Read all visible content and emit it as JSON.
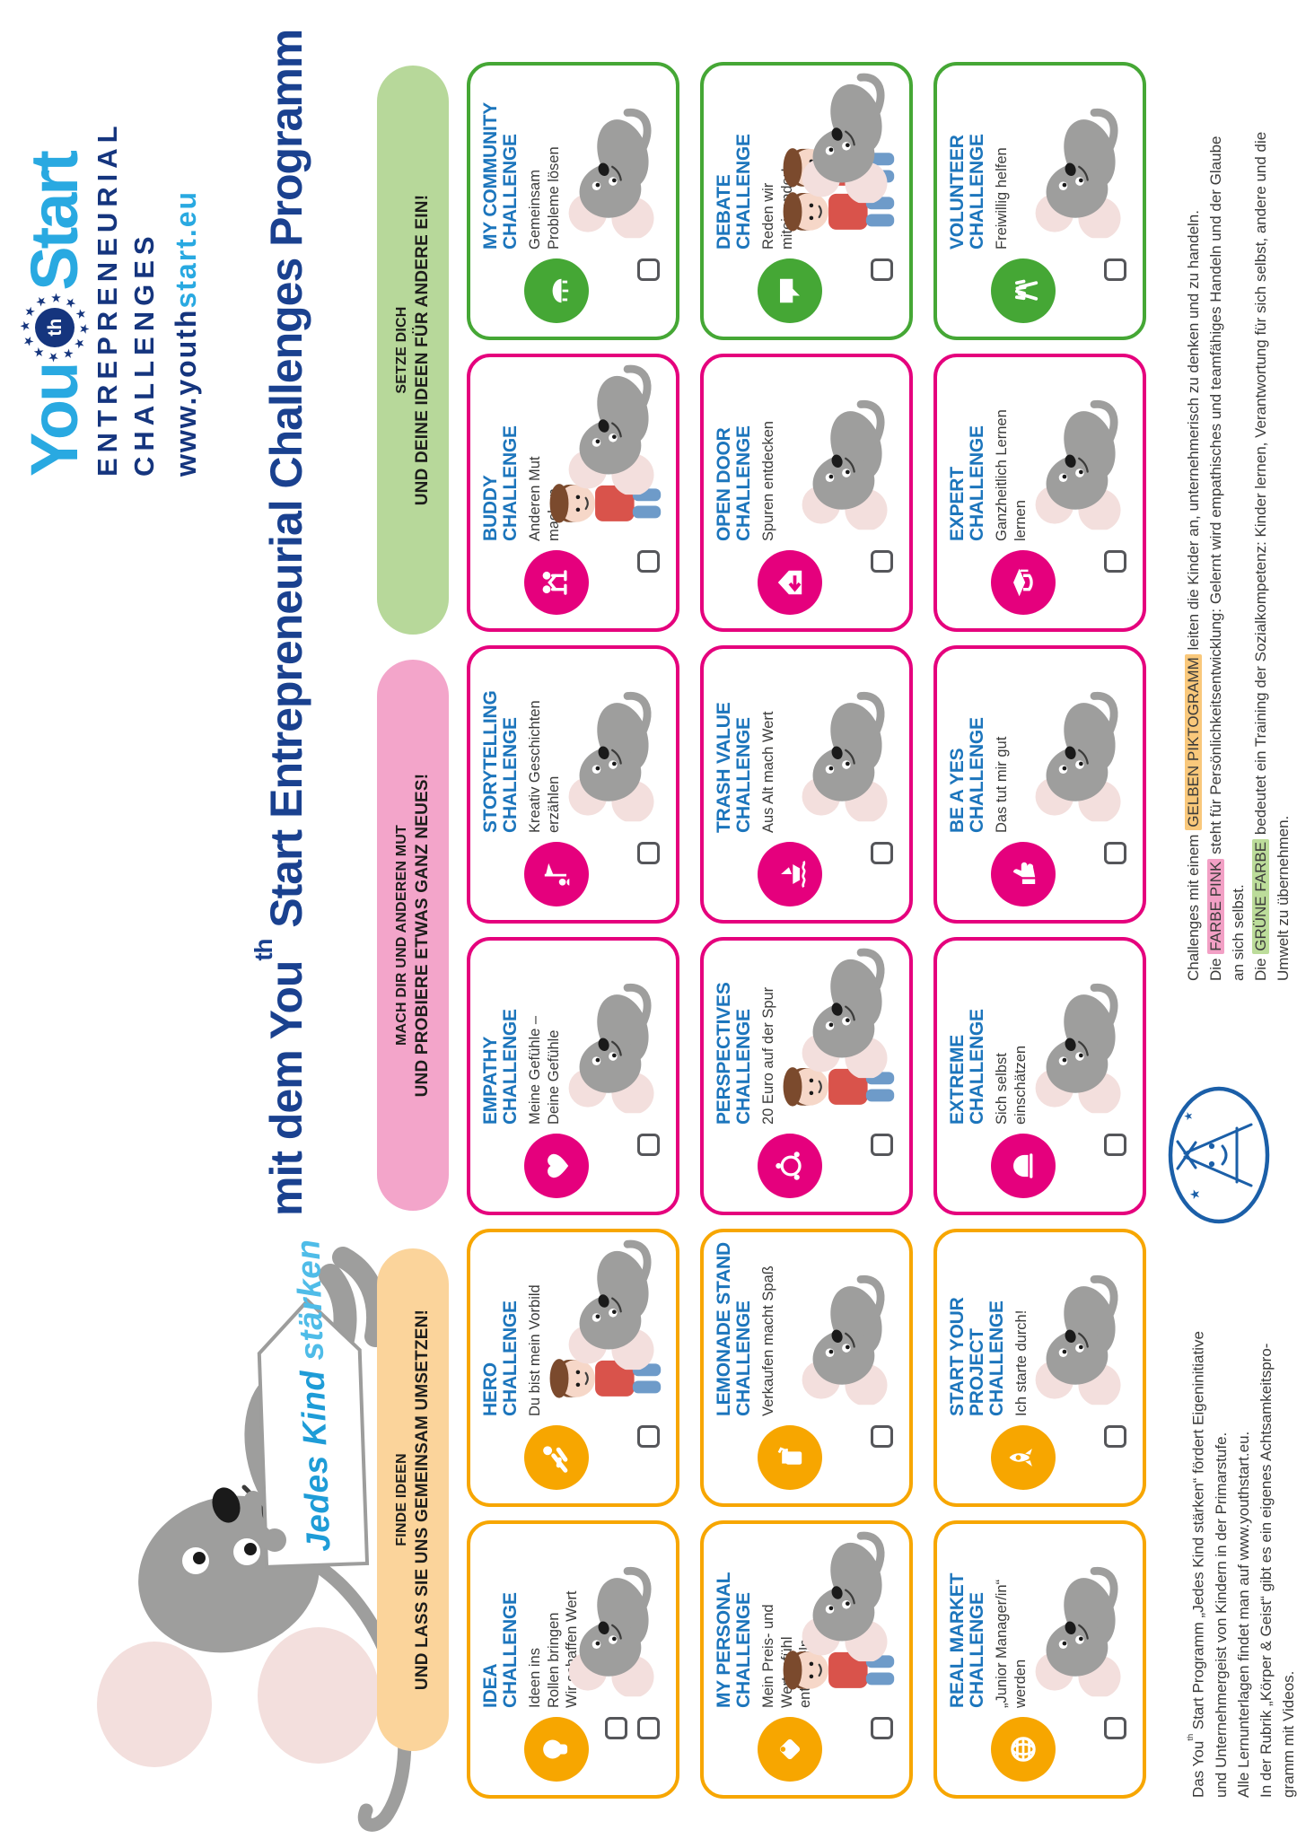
{
  "logo": {
    "you": "You",
    "th": "th",
    "start": "Start",
    "line2": "ENTREPRENEURIAL",
    "line3": "CHALLENGES",
    "url_dark": "www.youth",
    "url_light": "start.eu"
  },
  "sign": {
    "part1": "Jedes Kind ",
    "part2": "stärken"
  },
  "headline_rich": [
    {
      "t": "mit dem You"
    },
    {
      "t": "th",
      "sup": true
    },
    {
      "t": " Start Entrepreneurial Challenges Programm"
    }
  ],
  "sections": [
    {
      "id": "finde-ideen",
      "color": "amber",
      "line1": "FINDE IDEEN",
      "line2": "UND LASS SIE UNS GEMEINSAM UMSETZEN!"
    },
    {
      "id": "mach-mut",
      "color": "pink",
      "line1": "MACH DIR UND ANDEREN MUT",
      "line2": "UND PROBIERE ETWAS GANZ NEUES!"
    },
    {
      "id": "setze-dich",
      "color": "green",
      "line1": "SETZE DICH",
      "line2": "UND DEINE IDEEN FÜR ANDERE EIN!"
    }
  ],
  "cards": [
    {
      "name": "idea-challenge",
      "color": "amber",
      "icon": "lightbulb",
      "title": "IDEA\nCHALLENGE",
      "subtitle": "Ideen ins\nRollen bringen\nWir schaffen Wert",
      "checkboxes": 2,
      "scene": [
        "mouse"
      ]
    },
    {
      "name": "hero-challenge",
      "color": "amber",
      "icon": "superhero",
      "title": "HERO\nCHALLENGE",
      "subtitle": "Du bist mein Vorbild",
      "checkboxes": 1,
      "scene": [
        "kid",
        "mouse"
      ]
    },
    {
      "name": "empathy-challenge",
      "color": "pink",
      "icon": "heart",
      "title": "EMPATHY\nCHALLENGE",
      "subtitle": "Meine Gefühle –\nDeine Gefühle",
      "checkboxes": 1,
      "scene": [
        "mouse"
      ]
    },
    {
      "name": "storytelling-challenge",
      "color": "pink",
      "icon": "storyteller",
      "title": "STORYTELLING\nCHALLENGE",
      "subtitle": "Kreativ Geschichten\nerzählen",
      "checkboxes": 1,
      "scene": [
        "mouse"
      ]
    },
    {
      "name": "buddy-challenge",
      "color": "pink",
      "icon": "highfive",
      "title": "BUDDY\nCHALLENGE",
      "subtitle": "Anderen Mut\nmachen",
      "checkboxes": 1,
      "scene": [
        "kid",
        "mouse"
      ]
    },
    {
      "name": "my-community-challenge",
      "color": "green",
      "icon": "roundtable",
      "title": "MY COMMUNITY\nCHALLENGE",
      "subtitle": "Gemeinsam\nProbleme lösen",
      "checkboxes": 1,
      "scene": [
        "mouse"
      ]
    },
    {
      "name": "my-personal-challenge",
      "color": "amber",
      "icon": "price-tag",
      "title": "MY PERSONAL\nCHALLENGE",
      "subtitle": "Mein Preis- und\nWertgefühl\nentwickeln",
      "checkboxes": 1,
      "scene": [
        "kid",
        "mouse"
      ]
    },
    {
      "name": "lemonade-stand-challenge",
      "color": "amber",
      "icon": "juice-box",
      "title": "LEMONADE STAND\nCHALLENGE",
      "subtitle": "Verkaufen macht Spaß",
      "checkboxes": 1,
      "scene": [
        "mouse"
      ]
    },
    {
      "name": "perspectives-challenge",
      "color": "pink",
      "icon": "globe-people",
      "title": "PERSPECTIVES\nCHALLENGE",
      "subtitle": "20 Euro auf der Spur",
      "checkboxes": 1,
      "scene": [
        "kid",
        "mouse"
      ]
    },
    {
      "name": "trash-value-challenge",
      "color": "pink",
      "icon": "trash-boat",
      "title": "TRASH VALUE\nCHALLENGE",
      "subtitle": "Aus Alt mach Wert",
      "checkboxes": 1,
      "scene": [
        "mouse"
      ]
    },
    {
      "name": "open-door-challenge",
      "color": "pink",
      "icon": "open-door",
      "title": "OPEN DOOR\nCHALLENGE",
      "subtitle": "Spuren entdecken",
      "checkboxes": 1,
      "scene": [
        "mouse"
      ]
    },
    {
      "name": "debate-challenge",
      "color": "green",
      "icon": "speech-bubble",
      "title": "DEBATE\nCHALLENGE",
      "subtitle": "Reden wir\nmiteinander!",
      "checkboxes": 1,
      "scene": [
        "kid",
        "kid",
        "mouse"
      ]
    },
    {
      "name": "real-market-challenge",
      "color": "amber",
      "icon": "globe",
      "title": "REAL MARKET\nCHALLENGE",
      "subtitle": "„Junior Manager/in“\nwerden",
      "checkboxes": 1,
      "scene": [
        "mouse"
      ]
    },
    {
      "name": "start-your-project-challenge",
      "color": "amber",
      "icon": "rocket",
      "title": "START YOUR\nPROJECT\nCHALLENGE",
      "subtitle": "Ich starte durch!",
      "checkboxes": 1,
      "scene": [
        "mouse"
      ]
    },
    {
      "name": "extreme-challenge",
      "color": "pink",
      "icon": "helmet",
      "title": "EXTREME\nCHALLENGE",
      "subtitle": "Sich selbst\neinschätzen",
      "checkboxes": 1,
      "scene": [
        "mouse"
      ]
    },
    {
      "name": "be-a-yes-challenge",
      "color": "pink",
      "icon": "thumbs-up",
      "title": "BE A YES\nCHALLENGE",
      "subtitle": "Das tut mir gut",
      "checkboxes": 1,
      "scene": [
        "mouse"
      ]
    },
    {
      "name": "expert-challenge",
      "color": "pink",
      "icon": "graduation-cap",
      "title": "EXPERT\nCHALLENGE",
      "subtitle": "Ganzheitlich Lernen\nlernen",
      "checkboxes": 1,
      "scene": [
        "mouse"
      ]
    },
    {
      "name": "volunteer-challenge",
      "color": "green",
      "icon": "helping-hands",
      "title": "VOLUNTEER\nCHALLENGE",
      "subtitle": "Freiwillig helfen",
      "checkboxes": 1,
      "scene": [
        "mouse"
      ]
    }
  ],
  "footer": {
    "left_rich": [
      {
        "t": "Das You"
      },
      {
        "t": "th",
        "sup": true
      },
      {
        "t": " Start Programm „Jedes Kind stärken“ fördert Eigeninitiative\nund Unternehmergeist von Kindern in der Primarstufe.\nAlle Lernunterlagen findet man auf www.youthstart.eu.\nIn der Rubrik „Körper & Geist“ gibt es ein eigenes Achtsamkeitspro-\ngramm mit Videos."
      }
    ],
    "right_rich": [
      {
        "t": "Challenges mit einem "
      },
      {
        "t": "GELBEN PIKTOGRAMM",
        "hl": "amber"
      },
      {
        "t": " leiten die Kinder an, unternehmerisch zu denken und zu handeln.\nDie "
      },
      {
        "t": "FARBE PINK",
        "hl": "pink"
      },
      {
        "t": " steht für Persönlichkeitsentwicklung: Gelernt wird empathisches und teamfähiges Handeln und der Glaube\nan sich selbst.\nDie "
      },
      {
        "t": "GRÜNE FARBE",
        "hl": "green"
      },
      {
        "t": " bedeutet ein Training der Sozialkompetenz: Kinder lernen, Verantwortung für sich selbst, andere und die\nUmwelt zu übernehmen."
      }
    ]
  },
  "colors": {
    "cyan": "#29A9E1",
    "navy": "#15357E",
    "title-blue": "#1A418F",
    "card-title": "#1C75BC",
    "text": "#3A3A39",
    "amber": "#F7A600",
    "magenta": "#E5007D",
    "green": "#45A735",
    "pill-amber": "#FBD49B",
    "pill-pink": "#F3A5CA",
    "pill-green": "#B7D89A",
    "hl-amber": "#F9C87B",
    "hl-pink": "#F2A0C5",
    "hl-green": "#BCDC9A",
    "doodle-blue": "#1B5FA8"
  }
}
